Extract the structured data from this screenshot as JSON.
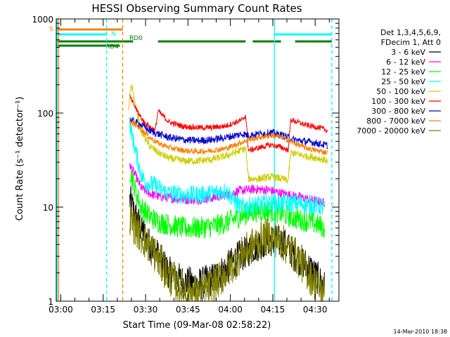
{
  "chart_data": {
    "type": "line",
    "title": "HESSI Observing Summary Count Rates",
    "xlabel": "Start Time (09-Mar-08 02:58:22)",
    "ylabel": "Count Rate (s⁻¹ detector⁻¹)",
    "yscale": "log",
    "ylim": [
      1,
      1000
    ],
    "y_ticks": [
      "1",
      "10",
      "100",
      "1000"
    ],
    "x_ticks": [
      "03:00",
      "03:15",
      "03:30",
      "03:45",
      "04:00",
      "04:15",
      "04:30"
    ],
    "x_ticks_min": [
      1.6,
      16.6,
      31.6,
      46.6,
      61.6,
      76.6,
      91.6
    ],
    "xlim_min": [
      0,
      100
    ],
    "legend_title": [
      "Det 1,3,4,5,6,9,",
      "FDecim 1, Att 0"
    ],
    "legend_position": "right",
    "footer": "14-Mar-2010 18:38",
    "flags": {
      "S": {
        "label": "S",
        "color": "#ff7f00",
        "intervals": [
          [
            0,
            23.5
          ]
        ]
      },
      "N": {
        "label": "N",
        "color": "#00ffff",
        "intervals": [
          [
            0,
            17.8
          ],
          [
            77.2,
            97.5
          ]
        ]
      },
      "RD0": {
        "label": "RD0",
        "color": "#007f00",
        "intervals": [
          [
            0,
            27.2
          ],
          [
            36,
            67
          ],
          [
            69.5,
            79.5
          ],
          [
            84.5,
            97.5
          ]
        ]
      },
      "RD4": {
        "label": "RD4",
        "color": "#007f00",
        "intervals": [
          [
            0,
            22.5
          ]
        ]
      }
    },
    "verticals": [
      {
        "x": 0.3,
        "color": "#00ffff",
        "style": "solid"
      },
      {
        "x": 0.8,
        "color": "#ff7f00",
        "style": "solid"
      },
      {
        "x": 17.8,
        "color": "#00ffff",
        "style": "dashed"
      },
      {
        "x": 23.5,
        "color": "#ff7f00",
        "style": "dashed"
      },
      {
        "x": 77.2,
        "color": "#00ffff",
        "style": "solid"
      },
      {
        "x": 97.5,
        "color": "#00ffff",
        "style": "dashed"
      }
    ],
    "series": [
      {
        "name": "3 - 6 keV",
        "color": "#000000",
        "noise": 0.18,
        "points": [
          [
            26,
            12
          ],
          [
            28,
            8
          ],
          [
            30,
            6
          ],
          [
            33,
            4
          ],
          [
            36,
            3
          ],
          [
            40,
            2
          ],
          [
            45,
            1.6
          ],
          [
            50,
            1.5
          ],
          [
            55,
            1.7
          ],
          [
            60,
            2.2
          ],
          [
            65,
            3
          ],
          [
            70,
            3.8
          ],
          [
            75,
            4.5
          ],
          [
            80,
            4.2
          ],
          [
            85,
            3
          ],
          [
            90,
            2.2
          ],
          [
            95,
            1.4
          ]
        ]
      },
      {
        "name": "6 - 12 keV",
        "color": "#ff00ff",
        "noise": 0.05,
        "points": [
          [
            26,
            28
          ],
          [
            28,
            22
          ],
          [
            30,
            16
          ],
          [
            33,
            14
          ],
          [
            36,
            13
          ],
          [
            40,
            12.5
          ],
          [
            45,
            12
          ],
          [
            50,
            12
          ],
          [
            55,
            12.5
          ],
          [
            60,
            13.5
          ],
          [
            65,
            15
          ],
          [
            70,
            15.5
          ],
          [
            75,
            15.2
          ],
          [
            80,
            14
          ],
          [
            85,
            13
          ],
          [
            90,
            12
          ],
          [
            95,
            11
          ]
        ]
      },
      {
        "name": "12 - 25 keV",
        "color": "#00ff00",
        "noise": 0.12,
        "points": [
          [
            26,
            25
          ],
          [
            28,
            15
          ],
          [
            30,
            10
          ],
          [
            33,
            8
          ],
          [
            36,
            7
          ],
          [
            40,
            6.5
          ],
          [
            45,
            6
          ],
          [
            50,
            6
          ],
          [
            55,
            6.2
          ],
          [
            60,
            6.8
          ],
          [
            65,
            8
          ],
          [
            70,
            9
          ],
          [
            75,
            9.2
          ],
          [
            80,
            8.5
          ],
          [
            85,
            7.5
          ],
          [
            90,
            7
          ],
          [
            95,
            6
          ]
        ]
      },
      {
        "name": "25 - 50 keV",
        "color": "#00ffff",
        "noise": 0.1,
        "points": [
          [
            26,
            75
          ],
          [
            28,
            40
          ],
          [
            30,
            22
          ],
          [
            32,
            18
          ],
          [
            35,
            17
          ],
          [
            37.5,
            15
          ],
          [
            40,
            14
          ],
          [
            45,
            13.5
          ],
          [
            50,
            13.5
          ],
          [
            55,
            14
          ],
          [
            60,
            15
          ],
          [
            65,
            10
          ],
          [
            70,
            10.5
          ],
          [
            75,
            11
          ],
          [
            80,
            11
          ],
          [
            85,
            11
          ],
          [
            90,
            10.5
          ],
          [
            95,
            10
          ]
        ]
      },
      {
        "name": "50 - 100 keV",
        "color": "#cccc00",
        "noise": 0.04,
        "points": [
          [
            25.5,
            100
          ],
          [
            26.5,
            210
          ],
          [
            28,
            120
          ],
          [
            30,
            65
          ],
          [
            33,
            45
          ],
          [
            36,
            38
          ],
          [
            40,
            33
          ],
          [
            45,
            31
          ],
          [
            50,
            31
          ],
          [
            55,
            32
          ],
          [
            60,
            35
          ],
          [
            67,
            42
          ],
          [
            68,
            20
          ],
          [
            72,
            20
          ],
          [
            76,
            21
          ],
          [
            80,
            20
          ],
          [
            82,
            19
          ],
          [
            83,
            38
          ],
          [
            88,
            35
          ],
          [
            93,
            33
          ],
          [
            96,
            31
          ]
        ]
      },
      {
        "name": "100 - 300 keV",
        "color": "#ff0000",
        "noise": 0.03,
        "points": [
          [
            26,
            150
          ],
          [
            27,
            130
          ],
          [
            29,
            100
          ],
          [
            31,
            80
          ],
          [
            35,
            65
          ],
          [
            36,
            105
          ],
          [
            40,
            80
          ],
          [
            45,
            72
          ],
          [
            50,
            70
          ],
          [
            55,
            70
          ],
          [
            60,
            73
          ],
          [
            66,
            85
          ],
          [
            67,
            95
          ],
          [
            68,
            40
          ],
          [
            72,
            43
          ],
          [
            76,
            46
          ],
          [
            80,
            43
          ],
          [
            82,
            40
          ],
          [
            83,
            85
          ],
          [
            88,
            75
          ],
          [
            93,
            70
          ],
          [
            96,
            65
          ]
        ]
      },
      {
        "name": "300 - 800 keV",
        "color": "#0000cc",
        "noise": 0.04,
        "points": [
          [
            26,
            85
          ],
          [
            28,
            80
          ],
          [
            30,
            75
          ],
          [
            33,
            65
          ],
          [
            36,
            60
          ],
          [
            40,
            55
          ],
          [
            45,
            52
          ],
          [
            50,
            51
          ],
          [
            55,
            52
          ],
          [
            60,
            55
          ],
          [
            66,
            60
          ],
          [
            68,
            58
          ],
          [
            72,
            60
          ],
          [
            76,
            62
          ],
          [
            80,
            58
          ],
          [
            84,
            52
          ],
          [
            88,
            50
          ],
          [
            92,
            48
          ],
          [
            96,
            45
          ]
        ]
      },
      {
        "name": "800 - 7000 keV",
        "color": "#ff7f00",
        "noise": 0.03,
        "points": [
          [
            26,
            80
          ],
          [
            28,
            75
          ],
          [
            30,
            68
          ],
          [
            33,
            55
          ],
          [
            36,
            48
          ],
          [
            40,
            43
          ],
          [
            45,
            40
          ],
          [
            50,
            39
          ],
          [
            55,
            40
          ],
          [
            60,
            42
          ],
          [
            65,
            48
          ],
          [
            68,
            52
          ],
          [
            72,
            55
          ],
          [
            76,
            58
          ],
          [
            80,
            55
          ],
          [
            84,
            48
          ],
          [
            88,
            43
          ],
          [
            92,
            40
          ],
          [
            96,
            38
          ]
        ]
      },
      {
        "name": "7000 - 20000 keV",
        "color": "#7f7f00",
        "noise": 0.2,
        "points": [
          [
            26,
            8
          ],
          [
            28,
            6
          ],
          [
            31,
            4.5
          ],
          [
            34,
            3.5
          ],
          [
            37,
            2.5
          ],
          [
            40,
            1.8
          ],
          [
            45,
            1.3
          ],
          [
            50,
            1.2
          ],
          [
            55,
            1.4
          ],
          [
            60,
            2
          ],
          [
            65,
            3
          ],
          [
            70,
            4
          ],
          [
            75,
            5
          ],
          [
            80,
            4.2
          ],
          [
            85,
            3
          ],
          [
            90,
            1.8
          ],
          [
            95,
            1.2
          ]
        ]
      }
    ]
  }
}
